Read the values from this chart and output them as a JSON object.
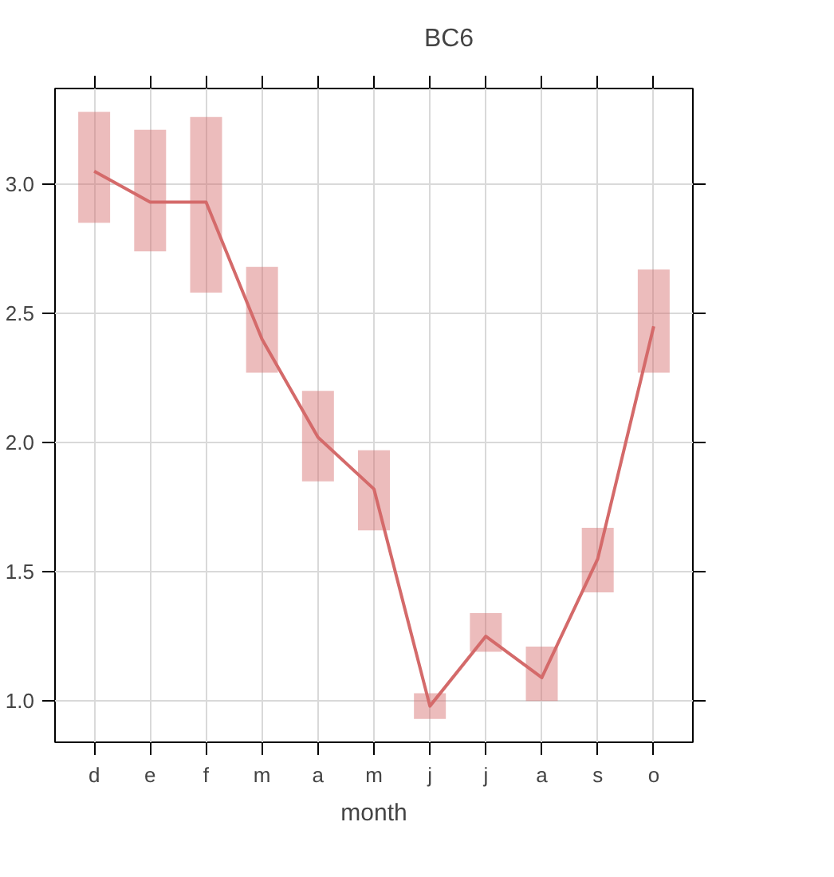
{
  "chart_data": {
    "type": "line",
    "xlabel": "month",
    "categories": [
      "d",
      "e",
      "f",
      "m",
      "a",
      "m",
      "j",
      "j",
      "a",
      "s",
      "o"
    ],
    "series": [
      {
        "name": "BC6",
        "color": "#d46a6a",
        "values": [
          3.05,
          2.93,
          2.93,
          2.4,
          2.02,
          1.82,
          0.98,
          1.25,
          1.09,
          1.55,
          2.45
        ],
        "errors": [
          [
            2.85,
            3.28
          ],
          [
            2.74,
            3.21
          ],
          [
            2.58,
            3.26
          ],
          [
            2.27,
            2.68
          ],
          [
            1.85,
            2.2
          ],
          [
            1.66,
            1.97
          ],
          [
            0.93,
            1.03
          ],
          [
            1.19,
            1.34
          ],
          [
            1.0,
            1.21
          ],
          [
            1.42,
            1.67
          ],
          [
            2.27,
            2.67
          ]
        ]
      }
    ],
    "ylim": [
      0.84,
      3.37
    ],
    "yticks": [
      {
        "value": 1.0,
        "label": "1.0"
      },
      {
        "value": 1.5,
        "label": "1.5"
      },
      {
        "value": 2.0,
        "label": "2.0"
      },
      {
        "value": 2.5,
        "label": "2.5"
      },
      {
        "value": 3.0,
        "label": "3.0"
      }
    ],
    "grid": true,
    "legend": "top",
    "line_style": "solid"
  }
}
